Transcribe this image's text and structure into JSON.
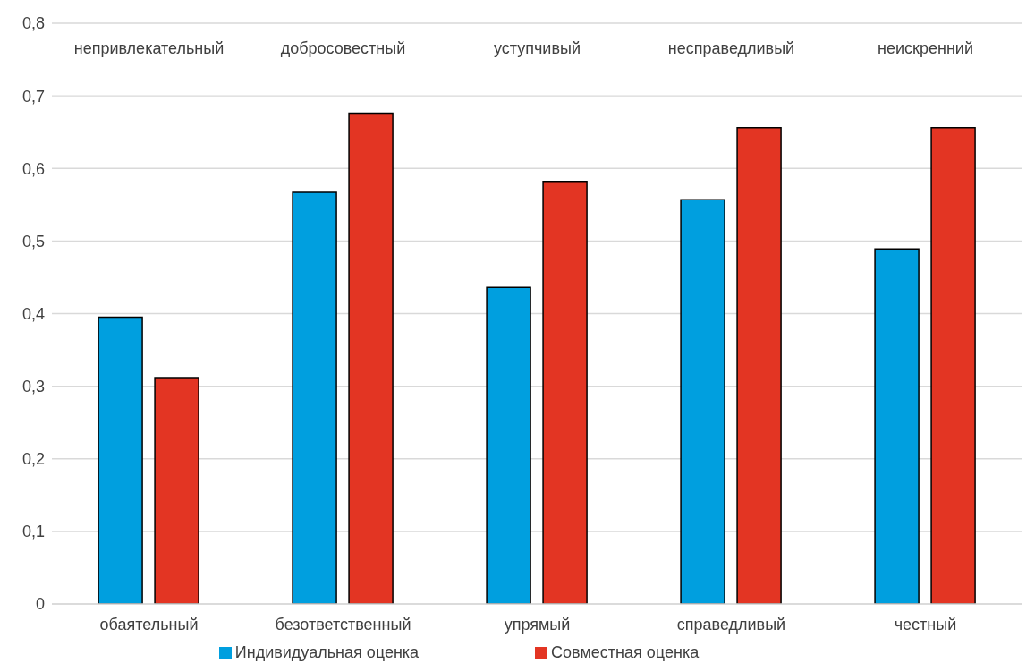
{
  "chart_data": {
    "type": "bar",
    "categories": [
      "обаятельный",
      "безответственный",
      "упрямый",
      "справедливый",
      "честный"
    ],
    "annotations": [
      "непривлекательный",
      "добросовестный",
      "уступчивый",
      "несправедливый",
      "неискренний"
    ],
    "series": [
      {
        "name": "Индивидуальная оценка",
        "color": "#009fdf",
        "values": [
          0.395,
          0.567,
          0.436,
          0.557,
          0.489
        ]
      },
      {
        "name": "Совместная оценка",
        "color": "#e33523",
        "values": [
          0.312,
          0.676,
          0.582,
          0.656,
          0.656
        ]
      }
    ],
    "ylim": [
      0,
      0.8
    ],
    "yticks": [
      {
        "value": 0,
        "label": "0"
      },
      {
        "value": 0.1,
        "label": "0,1"
      },
      {
        "value": 0.2,
        "label": "0,2"
      },
      {
        "value": 0.3,
        "label": "0,3"
      },
      {
        "value": 0.4,
        "label": "0,4"
      },
      {
        "value": 0.5,
        "label": "0,5"
      },
      {
        "value": 0.6,
        "label": "0,6"
      },
      {
        "value": 0.7,
        "label": "0,7"
      },
      {
        "value": 0.8,
        "label": "0,8"
      }
    ],
    "grid": "y",
    "legend": "bottom"
  }
}
